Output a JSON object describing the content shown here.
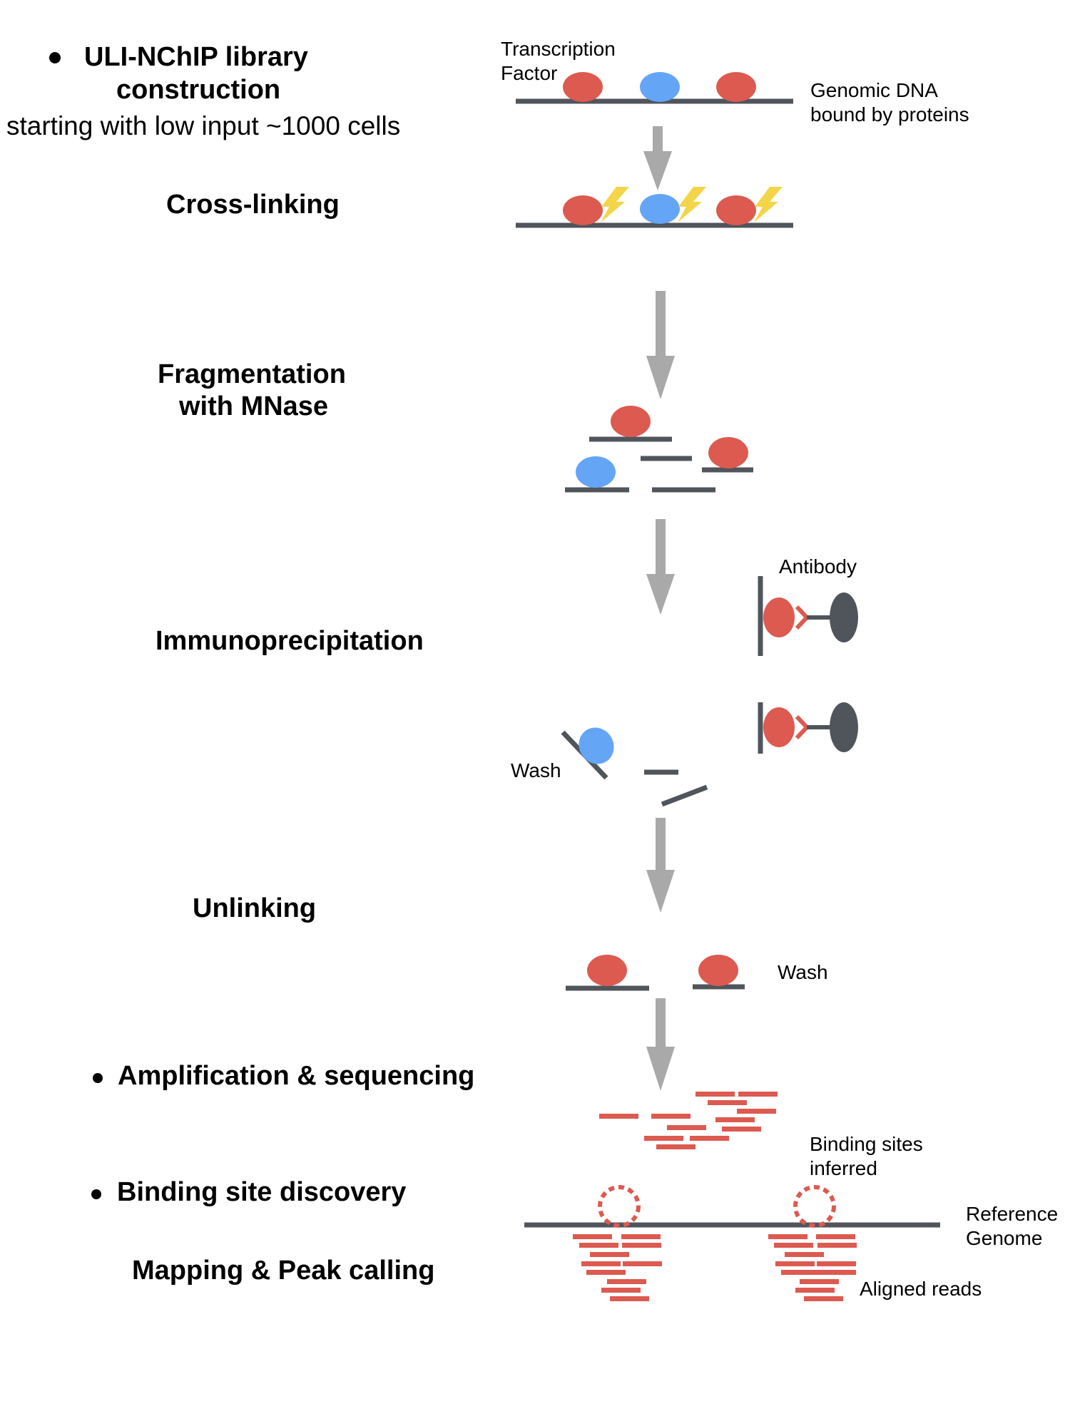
{
  "colors": {
    "protein_red": "#dc5a50",
    "protein_blue": "#64a5f5",
    "dna_gray": "#50555c",
    "arrow_gray": "#a9a9a9",
    "crosslink_yellow": "#f4d54a",
    "antibody_dark": "#50555c"
  },
  "header": {
    "title_line1": "ULI-NChIP library",
    "title_line2": "construction",
    "subtitle": "starting with low input ~1000 cells"
  },
  "steps": {
    "crosslinking": "Cross-linking",
    "fragmentation_line1": "Fragmentation",
    "fragmentation_line2": "with MNase",
    "immunoprecipitation": "Immunoprecipitation",
    "unlinking": "Unlinking",
    "amplification": "Amplification & sequencing",
    "discovery": "Binding site discovery",
    "mapping": "Mapping & Peak calling"
  },
  "annotations": {
    "tf_line1": "Transcription",
    "tf_line2": "Factor",
    "dna_line1": "Genomic DNA",
    "dna_line2": "bound by proteins",
    "antibody": "Antibody",
    "wash_ip": "Wash",
    "wash_unlink": "Wash",
    "binding_line1": "Binding sites",
    "binding_line2": "inferred",
    "ref_line1": "Reference",
    "ref_line2": "Genome",
    "aligned": "Aligned reads"
  },
  "icons": {
    "bullet": "bullet-dot-icon",
    "arrow": "down-arrow-icon",
    "protein": "protein-ellipse-icon",
    "crosslink": "lightning-bolt-icon",
    "antibody": "antibody-y-icon",
    "binding_site": "dotted-circle-icon"
  }
}
